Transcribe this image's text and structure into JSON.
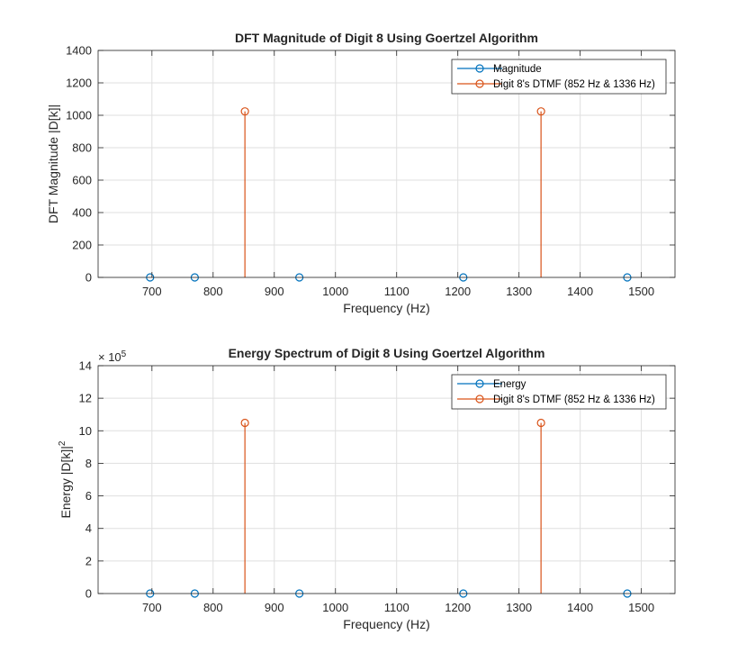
{
  "chart_data": [
    {
      "type": "stem",
      "title": "DFT Magnitude of Digit 8 Using Goertzel Algorithm",
      "xlabel": "Frequency (Hz)",
      "ylabel": "DFT Magnitude |D[k]|",
      "xlim": [
        612,
        1555
      ],
      "ylim": [
        0,
        1400
      ],
      "xticks": [
        700,
        800,
        900,
        1000,
        1100,
        1200,
        1300,
        1400,
        1500
      ],
      "yticks": [
        0,
        200,
        400,
        600,
        800,
        1000,
        1200,
        1400
      ],
      "xtick_labels": [
        "700",
        "800",
        "900",
        "1000",
        "1100",
        "1200",
        "1300",
        "1400",
        "1500"
      ],
      "ytick_labels": [
        "0",
        "200",
        "400",
        "600",
        "800",
        "1000",
        "1200",
        "1400"
      ],
      "exponent_label": "",
      "grid": true,
      "legend_position": "top-right",
      "series": [
        {
          "name": "Magnitude",
          "color": "#0072BD",
          "x": [
            697,
            770,
            941,
            1209,
            1477
          ],
          "values": [
            0,
            0,
            0,
            0,
            0
          ]
        },
        {
          "name": "Digit 8's DTMF (852 Hz & 1336 Hz)",
          "color": "#D95319",
          "x": [
            852,
            1336
          ],
          "values": [
            1024,
            1024
          ]
        }
      ]
    },
    {
      "type": "stem",
      "title": "Energy Spectrum of Digit 8 Using Goertzel Algorithm",
      "xlabel": "Frequency (Hz)",
      "ylabel": "Energy |D[k]|",
      "ylabel_sup": "2",
      "xlim": [
        612,
        1555
      ],
      "ylim": [
        0,
        1400000
      ],
      "xticks": [
        700,
        800,
        900,
        1000,
        1100,
        1200,
        1300,
        1400,
        1500
      ],
      "yticks": [
        0,
        200000,
        400000,
        600000,
        800000,
        1000000,
        1200000,
        1400000
      ],
      "xtick_labels": [
        "700",
        "800",
        "900",
        "1000",
        "1100",
        "1200",
        "1300",
        "1400",
        "1500"
      ],
      "ytick_labels": [
        "0",
        "2",
        "4",
        "6",
        "8",
        "10",
        "12",
        "14"
      ],
      "exponent_label": "× 10",
      "exponent_sup": "5",
      "grid": true,
      "legend_position": "top-right",
      "series": [
        {
          "name": "Energy",
          "color": "#0072BD",
          "x": [
            697,
            770,
            941,
            1209,
            1477
          ],
          "values": [
            0,
            0,
            0,
            0,
            0
          ]
        },
        {
          "name": "Digit 8's DTMF (852 Hz & 1336 Hz)",
          "color": "#D95319",
          "x": [
            852,
            1336
          ],
          "values": [
            1048576,
            1048576
          ]
        }
      ]
    }
  ]
}
